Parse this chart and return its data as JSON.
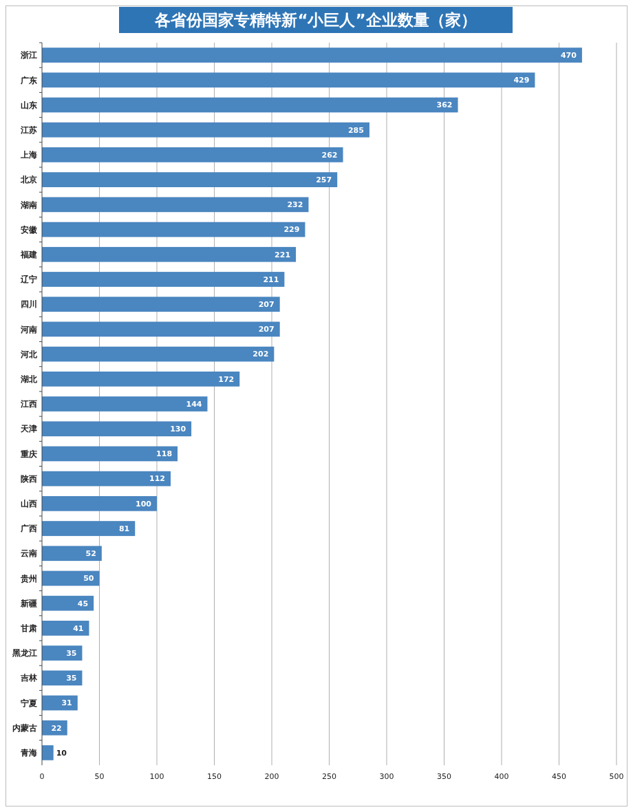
{
  "chart_data": {
    "type": "bar",
    "orientation": "horizontal",
    "title": "各省份国家专精特新“小巨人”企业数量（家）",
    "categories": [
      "浙江",
      "广东",
      "山东",
      "江苏",
      "上海",
      "北京",
      "湖南",
      "安徽",
      "福建",
      "辽宁",
      "四川",
      "河南",
      "河北",
      "湖北",
      "江西",
      "天津",
      "重庆",
      "陕西",
      "山西",
      "广西",
      "云南",
      "贵州",
      "新疆",
      "甘肃",
      "黑龙江",
      "吉林",
      "宁夏",
      "内蒙古",
      "青海"
    ],
    "values": [
      470,
      429,
      362,
      285,
      262,
      257,
      232,
      229,
      221,
      211,
      207,
      207,
      202,
      172,
      144,
      130,
      118,
      112,
      100,
      81,
      52,
      50,
      45,
      41,
      35,
      35,
      31,
      22,
      10
    ],
    "color": "#4a86c0",
    "xlim": [
      0,
      500
    ],
    "xticks": [
      0,
      50,
      100,
      150,
      200,
      250,
      300,
      350,
      400,
      450,
      500
    ],
    "grid": "x",
    "data_labels": true
  }
}
